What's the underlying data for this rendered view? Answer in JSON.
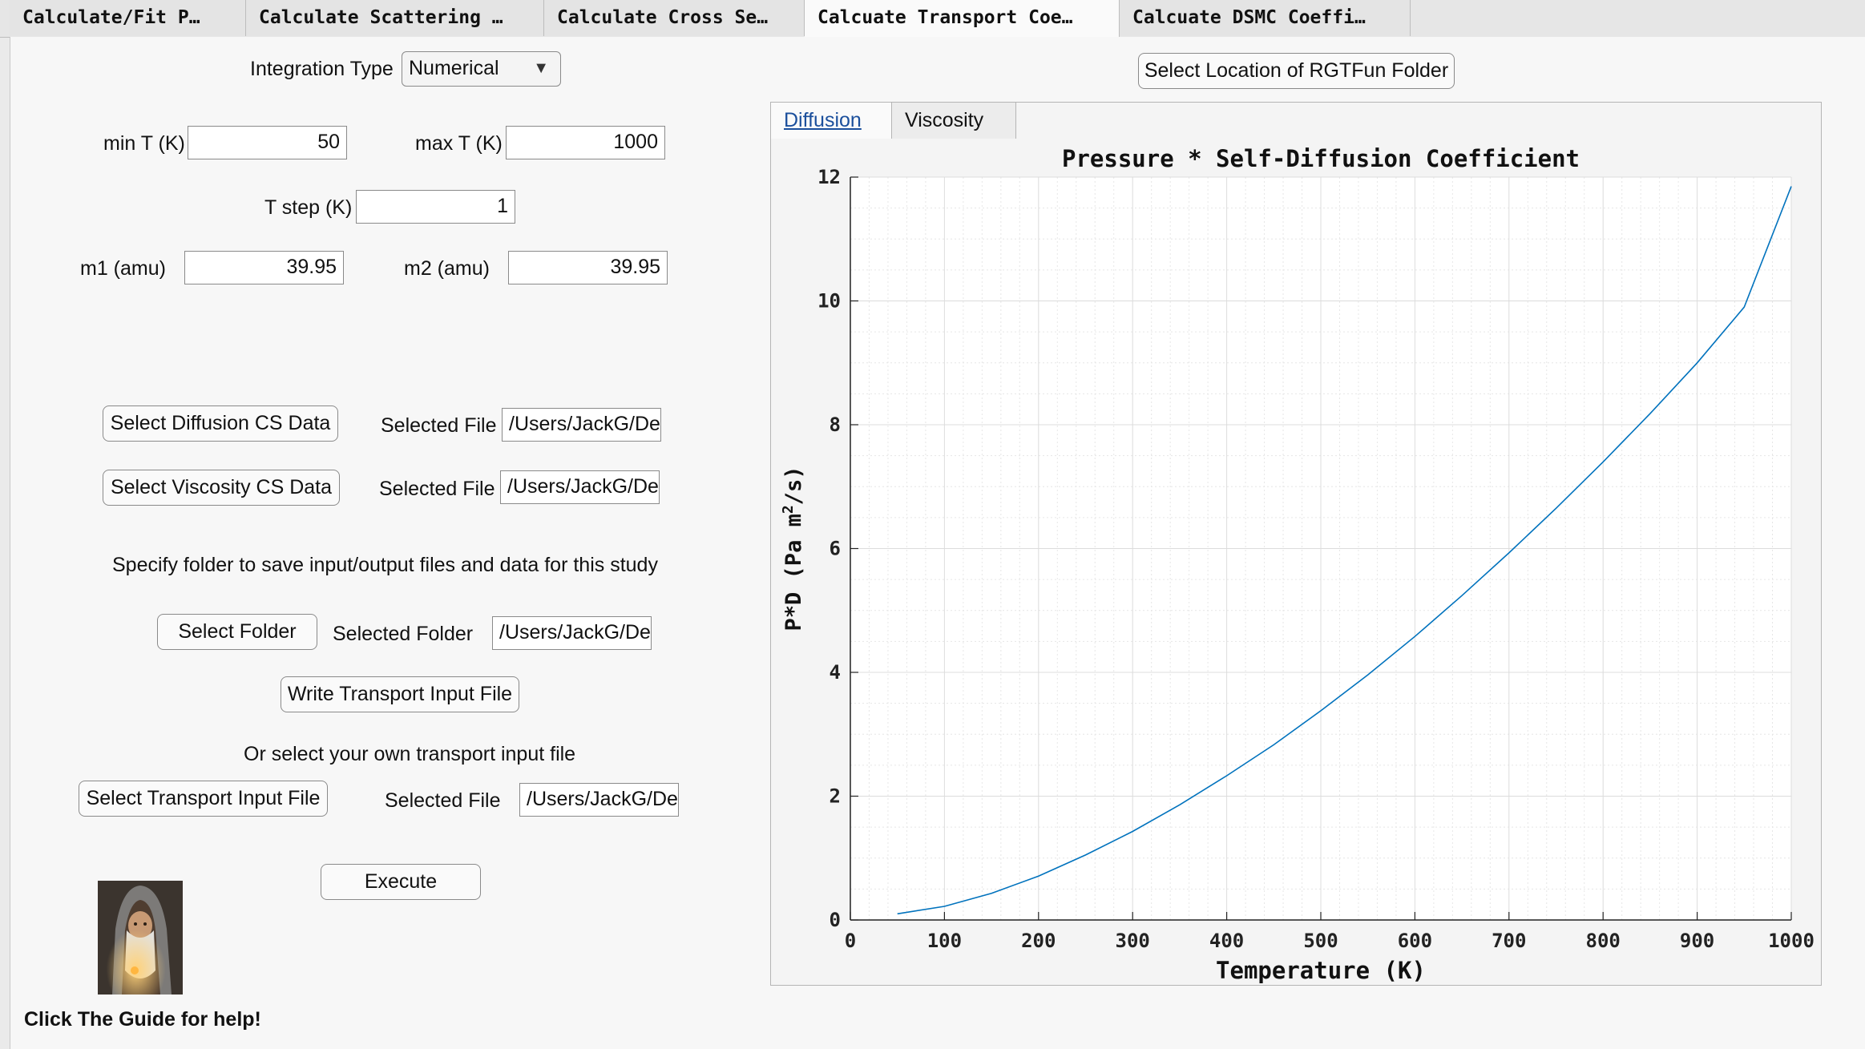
{
  "tabs": [
    {
      "label": "Calculate/Fit P…"
    },
    {
      "label": "Calculate Scattering …"
    },
    {
      "label": "Calculate Cross Se…"
    },
    {
      "label": "Calcuate Transport Coe…"
    },
    {
      "label": "Calcuate DSMC Coeffi…"
    }
  ],
  "form": {
    "integration_label": "Integration Type",
    "integration_value": "Numerical",
    "min_t_label": "min T (K)",
    "min_t_value": "50",
    "max_t_label": "max T (K)",
    "max_t_value": "1000",
    "t_step_label": "T step (K)",
    "t_step_value": "1",
    "m1_label": "m1 (amu)",
    "m1_value": "39.95",
    "m2_label": "m2 (amu)",
    "m2_value": "39.95"
  },
  "files": {
    "diffusion_button": "Select Diffusion CS Data",
    "diffusion_label": "Selected File",
    "diffusion_path": "/Users/JackG/De",
    "viscosity_button": "Select Viscosity CS Data",
    "viscosity_label": "Selected File",
    "viscosity_path": "/Users/JackG/De",
    "folder_instruction": "Specify folder to save input/output files and data for this study",
    "folder_button": "Select Folder",
    "folder_label": "Selected Folder",
    "folder_path": "/Users/JackG/De",
    "write_button": "Write Transport Input File",
    "or_text": "Or select your own transport input file",
    "input_button": "Select Transport Input File",
    "input_label": "Selected File",
    "input_path": "/Users/JackG/De",
    "execute_button": "Execute"
  },
  "help_text": "Click The Guide for help!",
  "rgt_button": "Select Location of RGTFun Folder",
  "chart_tabs": [
    "Diffusion",
    "Viscosity"
  ],
  "colors": {
    "line": "#0072bd",
    "active_tab_text": "#1b4f9c"
  },
  "chart_data": {
    "type": "line",
    "title": "Pressure * Self-Diffusion Coefficient",
    "xlabel": "Temperature (K)",
    "ylabel": "P*D (Pa m^2/s)",
    "xlim": [
      0,
      1000
    ],
    "ylim": [
      0,
      12
    ],
    "xticks": [
      0,
      100,
      200,
      300,
      400,
      500,
      600,
      700,
      800,
      900,
      1000
    ],
    "yticks": [
      0,
      2,
      4,
      6,
      8,
      10,
      12
    ],
    "grid": "on (major and minor)",
    "series": [
      {
        "x": [
          50,
          100,
          150,
          200,
          250,
          300,
          350,
          400,
          450,
          500,
          550,
          600,
          650,
          700,
          750,
          800,
          850,
          900,
          950,
          1000
        ],
        "y": [
          0.1,
          0.22,
          0.43,
          0.71,
          1.05,
          1.43,
          1.86,
          2.33,
          2.83,
          3.38,
          3.96,
          4.58,
          5.24,
          5.93,
          6.65,
          7.4,
          8.18,
          9.0,
          9.9,
          11.85
        ]
      }
    ]
  }
}
